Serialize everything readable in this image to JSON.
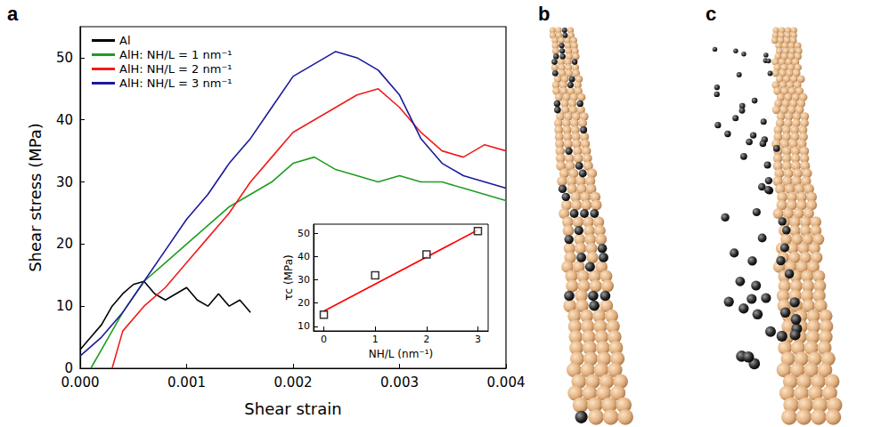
{
  "panel_labels": [
    "a",
    "b",
    "c"
  ],
  "chart_data": [
    {
      "type": "line",
      "x_label": "Shear strain",
      "y_label": "Shear stress (MPa)",
      "xlim": [
        0,
        0.004
      ],
      "xticks": [
        {
          "value": 0,
          "label": "0.000"
        },
        {
          "value": 0.001,
          "label": "0.001"
        },
        {
          "value": 0.002,
          "label": "0.002"
        },
        {
          "value": 0.003,
          "label": "0.003"
        },
        {
          "value": 0.004,
          "label": "0.004"
        }
      ],
      "ylim": [
        0,
        55
      ],
      "yticks": [
        0,
        10,
        20,
        30,
        40,
        50
      ],
      "grid": false,
      "legend": "upper left",
      "marker": "none",
      "series": [
        {
          "name": "Al",
          "color": "#000000",
          "x": [
            0,
            0.0001,
            0.0002,
            0.0003,
            0.0004,
            0.0005,
            0.0006,
            0.0007,
            0.0008,
            0.0009,
            0.001,
            0.0011,
            0.0012,
            0.0013,
            0.0014,
            0.0015,
            0.0016
          ],
          "values": [
            3,
            5,
            7,
            10,
            12,
            13.5,
            14,
            12,
            11,
            12,
            13,
            11,
            10,
            12,
            10,
            11,
            9
          ]
        },
        {
          "name": "AlH: NH/L = 1 nm⁻¹",
          "color": "#1e9e1e",
          "x": [
            0.0001,
            0.0002,
            0.0004,
            0.0006,
            0.0008,
            0.001,
            0.0012,
            0.0014,
            0.0016,
            0.0018,
            0.002,
            0.0022,
            0.0024,
            0.0026,
            0.0028,
            0.003,
            0.0032,
            0.0034,
            0.0036,
            0.0038,
            0.004
          ],
          "values": [
            0,
            3,
            9,
            14,
            17,
            20,
            23,
            26,
            28,
            30,
            33,
            34,
            32,
            31,
            30,
            31,
            30,
            30,
            29,
            28,
            27
          ]
        },
        {
          "name": "AlH: NH/L = 2 nm⁻¹",
          "color": "#f01c1c",
          "x": [
            0.0003,
            0.0004,
            0.0006,
            0.0008,
            0.001,
            0.0012,
            0.0014,
            0.0016,
            0.0018,
            0.002,
            0.0022,
            0.0024,
            0.0026,
            0.0028,
            0.003,
            0.0032,
            0.0034,
            0.0036,
            0.0038,
            0.004
          ],
          "values": [
            0,
            6,
            10,
            13,
            17,
            21,
            25,
            30,
            34,
            38,
            40,
            42,
            44,
            45,
            42,
            38,
            35,
            34,
            36,
            35
          ]
        },
        {
          "name": "AlH: NH/L = 3 nm⁻¹",
          "color": "#1a1a9a",
          "x": [
            0,
            0.0002,
            0.0004,
            0.0006,
            0.0008,
            0.001,
            0.0012,
            0.0014,
            0.0016,
            0.0018,
            0.002,
            0.0022,
            0.0024,
            0.0026,
            0.0028,
            0.003,
            0.0032,
            0.0034,
            0.0036,
            0.0038,
            0.004
          ],
          "values": [
            2,
            5,
            9,
            14,
            19,
            24,
            28,
            33,
            37,
            42,
            47,
            49,
            51,
            50,
            48,
            44,
            37,
            33,
            31,
            30,
            29
          ]
        }
      ]
    },
    {
      "type": "scatter",
      "x_label": "NH/L (nm⁻¹)",
      "y_label": "τc (MPa)",
      "xlim": [
        -0.2,
        3.2
      ],
      "xticks": [
        0,
        1,
        2,
        3
      ],
      "ylim": [
        8,
        54
      ],
      "yticks": [
        10,
        20,
        30,
        40,
        50
      ],
      "grid": false,
      "series": [
        {
          "type": "scatter",
          "color": "#000000",
          "marker": "open_square",
          "x": [
            0,
            1,
            2,
            3
          ],
          "values": [
            15,
            32,
            41,
            51
          ]
        },
        {
          "type": "line",
          "color": "#ff0000",
          "line_style": "solid",
          "x": [
            0,
            3
          ],
          "values": [
            16.5,
            51.5
          ]
        }
      ]
    }
  ]
}
